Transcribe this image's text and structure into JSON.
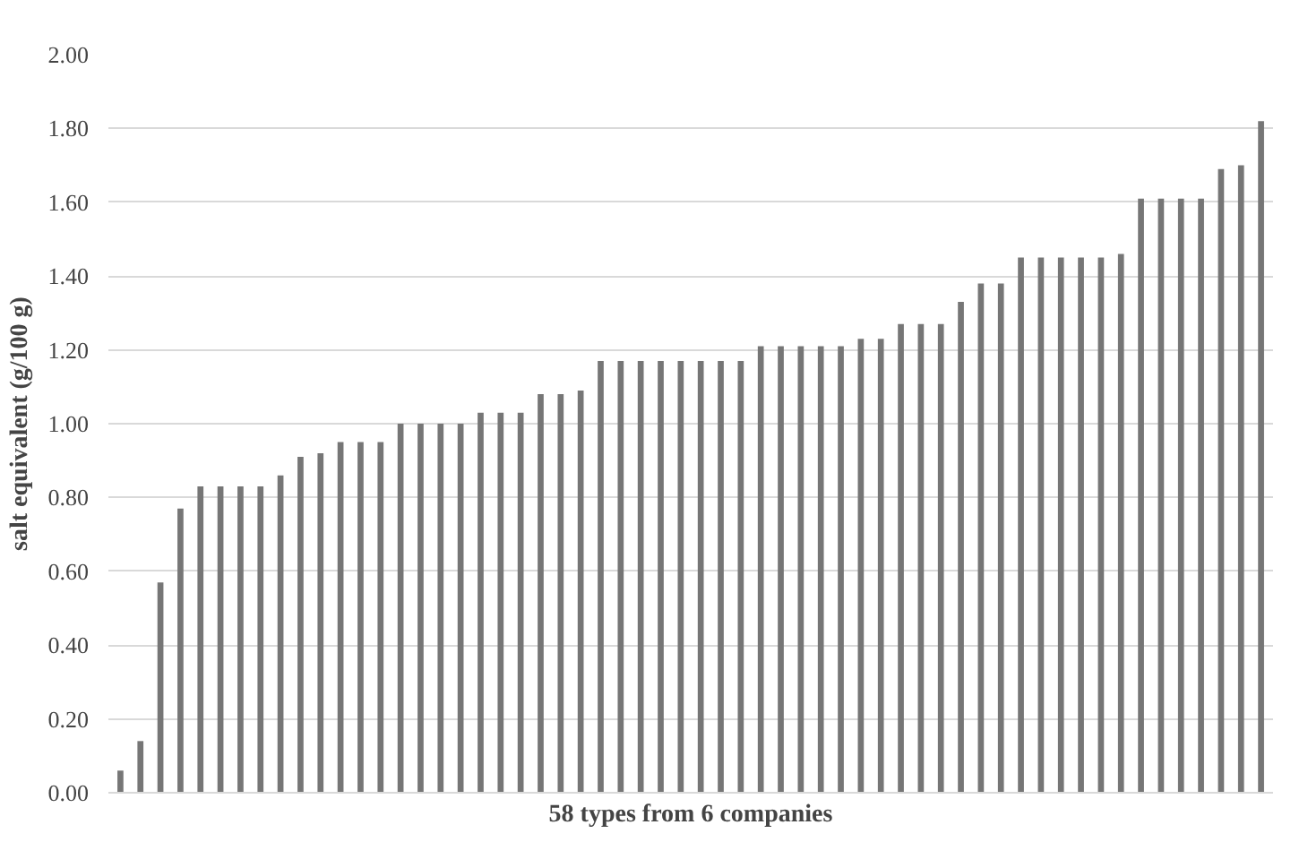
{
  "chart_data": {
    "type": "bar",
    "xlabel": "58 types from 6 companies",
    "ylabel": "salt equivalent (g/100 g)",
    "categories": [
      null,
      null,
      null,
      null,
      null,
      null,
      null,
      null,
      null,
      null,
      null,
      null,
      null,
      null,
      null,
      null,
      null,
      null,
      null,
      null,
      null,
      null,
      null,
      null,
      null,
      null,
      null,
      null,
      null,
      null,
      null,
      null,
      null,
      null,
      null,
      null,
      null,
      null,
      null,
      null,
      null,
      null,
      null,
      null,
      null,
      null,
      null,
      null,
      null,
      null,
      null,
      null,
      null,
      null,
      null,
      null,
      null,
      null
    ],
    "values": [
      0.06,
      0.14,
      0.57,
      0.77,
      0.83,
      0.83,
      0.83,
      0.83,
      0.86,
      0.91,
      0.92,
      0.95,
      0.95,
      0.95,
      1.0,
      1.0,
      1.0,
      1.0,
      1.03,
      1.03,
      1.03,
      1.08,
      1.08,
      1.09,
      1.17,
      1.17,
      1.17,
      1.17,
      1.17,
      1.17,
      1.17,
      1.17,
      1.21,
      1.21,
      1.21,
      1.21,
      1.21,
      1.23,
      1.23,
      1.27,
      1.27,
      1.27,
      1.33,
      1.38,
      1.38,
      1.45,
      1.45,
      1.45,
      1.45,
      1.45,
      1.46,
      1.61,
      1.61,
      1.61,
      1.61,
      1.69,
      1.7,
      1.82
    ],
    "color": "#767676",
    "ylim": [
      0,
      2
    ],
    "yticks": [
      {
        "value": 0,
        "label": "0.00"
      },
      {
        "value": 0.2,
        "label": "0.20"
      },
      {
        "value": 0.4,
        "label": "0.40"
      },
      {
        "value": 0.6,
        "label": "0.60"
      },
      {
        "value": 0.8,
        "label": "0.80"
      },
      {
        "value": 1.0,
        "label": "1.00"
      },
      {
        "value": 1.2,
        "label": "1.20"
      },
      {
        "value": 1.4,
        "label": "1.40"
      },
      {
        "value": 1.6,
        "label": "1.60"
      },
      {
        "value": 1.8,
        "label": "1.80"
      },
      {
        "value": 2.0,
        "label": "2.00"
      }
    ],
    "grid": "y",
    "tick_labels": "y"
  }
}
